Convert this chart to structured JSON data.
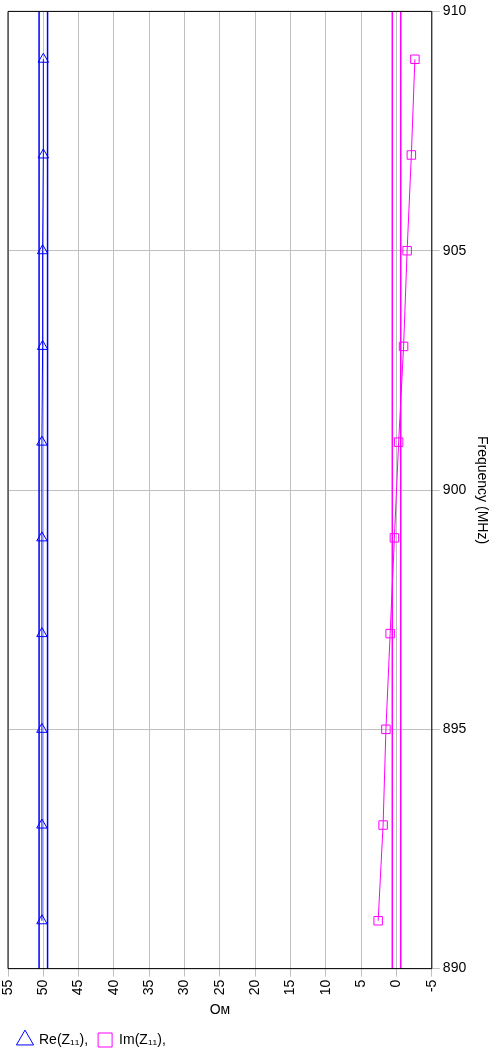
{
  "chart_data": {
    "type": "line",
    "xlabel": "Ом",
    "ylabel": "Frequency (MHz)",
    "series": [
      {
        "name": "Re(Z₁₁),",
        "color": "#0000ff",
        "marker": "triangle",
        "x": [
          50.2,
          50.2,
          50.2,
          50.2,
          50.2,
          50.2,
          50.1,
          50.1,
          50,
          50
        ],
        "values": [
          891,
          893,
          895,
          897,
          899,
          901,
          903,
          905,
          907,
          909
        ]
      },
      {
        "name": "Im(Z₁₁),",
        "color": "#ff00ff",
        "marker": "square",
        "x": [
          2.6,
          1.9,
          1.5,
          0.9,
          0.3,
          -0.3,
          -1.0,
          -1.5,
          -2.1,
          -2.6
        ],
        "values": [
          891,
          893,
          895,
          897,
          899,
          901,
          903,
          905,
          907,
          909
        ]
      }
    ],
    "ref_lines": [
      {
        "axis": "x",
        "value": 50.6,
        "color": "#0000ff"
      },
      {
        "axis": "x",
        "value": 49.4,
        "color": "#0000ff"
      },
      {
        "axis": "x",
        "value": 0.6,
        "color": "#ff00ff"
      },
      {
        "axis": "x",
        "value": -0.6,
        "color": "#ff00ff"
      }
    ],
    "xlim": [
      55,
      -5
    ],
    "xticks": [
      55,
      50,
      45,
      40,
      35,
      30,
      25,
      20,
      15,
      10,
      5,
      0,
      -5
    ],
    "ylim": [
      890,
      910
    ],
    "yticks": [
      890,
      895,
      900,
      905,
      910
    ],
    "grid": true,
    "legend": "bottom left"
  }
}
